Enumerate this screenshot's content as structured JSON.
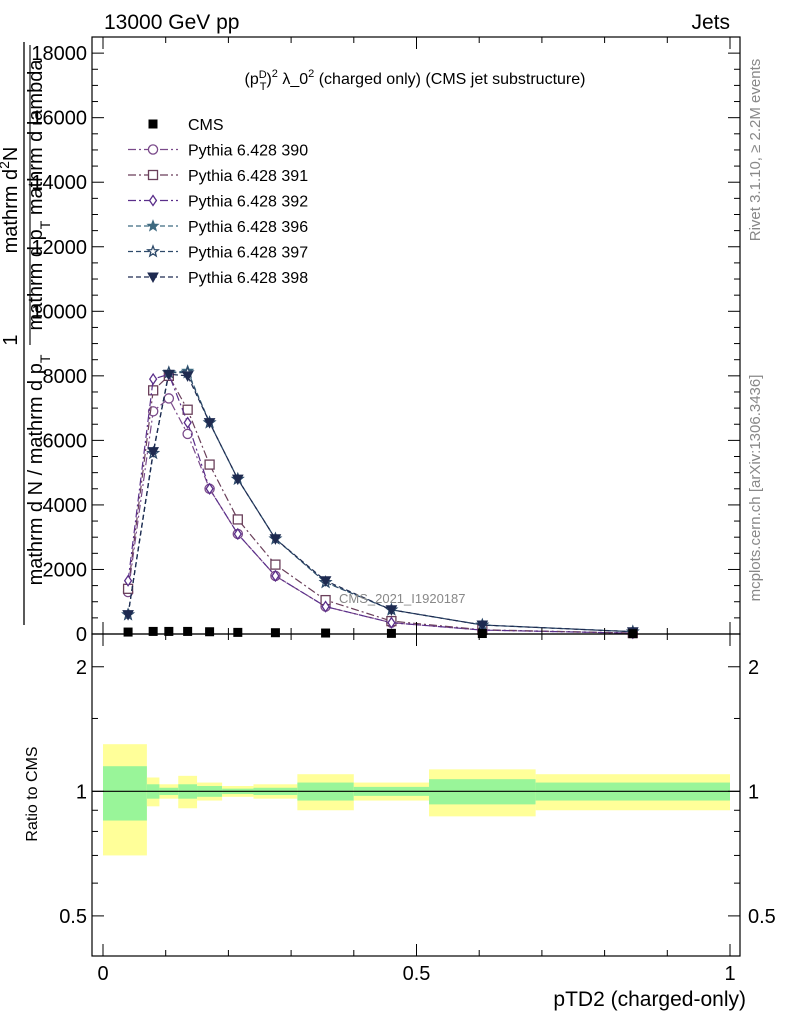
{
  "header": {
    "left": "13000 GeV pp",
    "right": "Jets"
  },
  "side_labels": {
    "rivet": "Rivet 3.1.10, ≥ 2.2M events",
    "mcplots": "mcplots.cern.ch [arXiv:1306.3436]"
  },
  "watermark": "CMS_2021_I1920187",
  "chart_data": {
    "type": "line",
    "title": "(p_T^D)^2 λ_0^2 (charged only) (CMS jet substructure)",
    "title_parts": {
      "pre": "(p",
      "sup1": "D",
      "sub1": "T",
      "mid": ")",
      "sup2": "2",
      "lambda": " λ_0",
      "sup3": "2",
      "post": " (charged only) (CMS jet substructure)"
    },
    "xlabel": "pTD2 (charged-only)",
    "ylabel_main": {
      "numer_1": "1",
      "denom_1": "mathrm d N / mathrm d p",
      "denom_sub": "T",
      "numer_2": "mathrm d",
      "numer_2_sup": "2",
      "numer_2_tail": "N",
      "denom_2": "mathrm d p",
      "denom_2_sub": "T",
      "denom_2_tail": " mathrm d lambda"
    },
    "ylabel_ratio": "Ratio to CMS",
    "xlim": [
      0,
      1
    ],
    "ylim": [
      0,
      18500
    ],
    "ratio_ylim_log": [
      0.4,
      2.4
    ],
    "x_ticks": [
      "0",
      "0.5",
      "1"
    ],
    "y_ticks": [
      "0",
      "2000",
      "4000",
      "6000",
      "8000",
      "10000",
      "12000",
      "14000",
      "16000",
      "18000"
    ],
    "ratio_ticks": [
      "0.5",
      "1",
      "2"
    ],
    "grid": false,
    "legend_position": "top-left",
    "data": {
      "name": "CMS",
      "x": [
        0.04,
        0.08,
        0.105,
        0.135,
        0.17,
        0.215,
        0.275,
        0.355,
        0.46,
        0.605,
        0.845
      ],
      "y": [
        60,
        80,
        80,
        80,
        70,
        50,
        40,
        30,
        20,
        15,
        10
      ]
    },
    "bins": [
      0,
      0.07,
      0.09,
      0.12,
      0.15,
      0.19,
      0.24,
      0.31,
      0.4,
      0.52,
      0.69,
      1.0
    ],
    "ratio_band_inner": [
      0.15,
      0.04,
      0.02,
      0.04,
      0.03,
      0.015,
      0.02,
      0.05,
      0.025,
      0.07,
      0.05
    ],
    "ratio_band_outer": [
      0.3,
      0.08,
      0.04,
      0.09,
      0.05,
      0.03,
      0.04,
      0.1,
      0.05,
      0.13,
      0.1
    ],
    "series": [
      {
        "name": "Pythia 6.428 390",
        "color": "#7a4a8a",
        "marker": "circle-open",
        "dash": "8,3,2,3",
        "x": [
          0.04,
          0.08,
          0.105,
          0.135,
          0.17,
          0.215,
          0.275,
          0.355,
          0.46,
          0.605,
          0.845
        ],
        "y": [
          1300,
          6900,
          7300,
          6200,
          4500,
          3100,
          1800,
          850,
          350,
          120,
          25
        ]
      },
      {
        "name": "Pythia 6.428 391",
        "color": "#6a3f5a",
        "marker": "square-open",
        "dash": "8,3,2,3",
        "x": [
          0.04,
          0.08,
          0.105,
          0.135,
          0.17,
          0.215,
          0.275,
          0.355,
          0.46,
          0.605,
          0.845
        ],
        "y": [
          1400,
          7550,
          8000,
          6950,
          5250,
          3550,
          2150,
          1050,
          400,
          130,
          30
        ]
      },
      {
        "name": "Pythia 6.428 392",
        "color": "#5a2e8a",
        "marker": "diamond-open",
        "dash": "8,3,2,3",
        "x": [
          0.04,
          0.08,
          0.105,
          0.135,
          0.17,
          0.215,
          0.275,
          0.355,
          0.46,
          0.605,
          0.845
        ],
        "y": [
          1650,
          7900,
          8050,
          6550,
          4500,
          3100,
          1800,
          850,
          350,
          120,
          25
        ]
      },
      {
        "name": "Pythia 6.428 396",
        "color": "#3e6a80",
        "marker": "star-filled",
        "dash": "5,3",
        "x": [
          0.04,
          0.08,
          0.105,
          0.135,
          0.17,
          0.215,
          0.275,
          0.355,
          0.46,
          0.605,
          0.845
        ],
        "y": [
          600,
          5600,
          8100,
          8150,
          6550,
          4800,
          2950,
          1600,
          750,
          280,
          70
        ]
      },
      {
        "name": "Pythia 6.428 397",
        "color": "#2e4a6a",
        "marker": "star-open",
        "dash": "5,3",
        "x": [
          0.04,
          0.08,
          0.105,
          0.135,
          0.17,
          0.215,
          0.275,
          0.355,
          0.46,
          0.605,
          0.845
        ],
        "y": [
          600,
          5600,
          8100,
          8100,
          6550,
          4800,
          2950,
          1600,
          750,
          280,
          70
        ]
      },
      {
        "name": "Pythia 6.428 398",
        "color": "#1e2a50",
        "marker": "triangle-down-filled",
        "dash": "5,3",
        "x": [
          0.04,
          0.08,
          0.105,
          0.135,
          0.17,
          0.215,
          0.275,
          0.355,
          0.46,
          0.605,
          0.845
        ],
        "y": [
          600,
          5650,
          8050,
          8000,
          6550,
          4800,
          2950,
          1650,
          750,
          280,
          70
        ]
      }
    ]
  }
}
